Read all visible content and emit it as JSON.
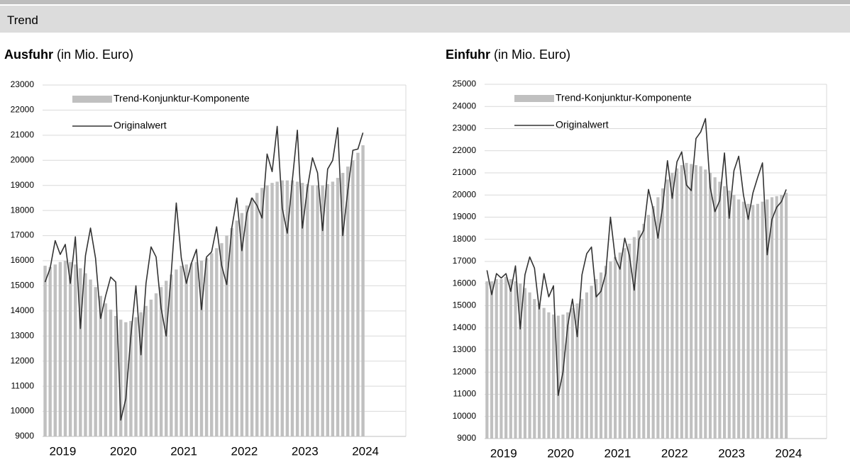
{
  "header": {
    "title": "Trend"
  },
  "chart_data": [
    {
      "type": "combo",
      "title": "Ausfuhr",
      "title_unit": "(in Mio. Euro)",
      "categories": [
        "2019",
        null,
        null,
        null,
        null,
        null,
        null,
        null,
        null,
        null,
        null,
        null,
        "2020",
        null,
        null,
        null,
        null,
        null,
        null,
        null,
        null,
        null,
        null,
        null,
        "2021",
        null,
        null,
        null,
        null,
        null,
        null,
        null,
        null,
        null,
        null,
        null,
        "2022",
        null,
        null,
        null,
        null,
        null,
        null,
        null,
        null,
        null,
        null,
        null,
        "2023",
        null,
        null,
        null,
        null,
        null,
        null,
        null,
        null,
        null,
        null,
        null,
        "2024",
        null,
        null,
        null,
        null,
        null,
        null,
        null,
        null,
        null,
        null,
        null
      ],
      "ylim": [
        9000,
        23000
      ],
      "yticks": [
        9000,
        10000,
        11000,
        12000,
        13000,
        14000,
        15000,
        16000,
        17000,
        18000,
        19000,
        20000,
        21000,
        22000,
        23000
      ],
      "grid": true,
      "legend": "top-left",
      "series": [
        {
          "name": "Trend-Konjunktur-Komponente",
          "type": "bar",
          "color": "#c0c0c0",
          "values": [
            15800,
            15750,
            15850,
            15950,
            16000,
            15950,
            15850,
            15700,
            15500,
            15250,
            14950,
            14600,
            14300,
            14050,
            13800,
            13650,
            13550,
            13600,
            13750,
            13950,
            14200,
            14450,
            14700,
            14950,
            15200,
            15450,
            15650,
            15800,
            15850,
            15900,
            15950,
            16000,
            16100,
            16300,
            16500,
            16700,
            17000,
            17300,
            17600,
            17900,
            18200,
            18500,
            18700,
            18900,
            19000,
            19100,
            19150,
            19200,
            19200,
            19200,
            19150,
            19100,
            19050,
            19000,
            19000,
            19000,
            19050,
            19150,
            19300,
            19500,
            19750,
            20000,
            20300,
            20600,
            null,
            null,
            null,
            null,
            null,
            null,
            null,
            null
          ]
        },
        {
          "name": "Originalwert",
          "type": "line",
          "color": "#333333",
          "values": [
            15150,
            15700,
            16800,
            16250,
            16650,
            15100,
            16950,
            13300,
            16200,
            17300,
            16100,
            13700,
            14600,
            15350,
            15150,
            9650,
            10500,
            13000,
            15000,
            12250,
            15100,
            16550,
            16150,
            14100,
            13000,
            15500,
            18300,
            16100,
            15100,
            15900,
            16450,
            14050,
            16150,
            16350,
            17350,
            15800,
            15050,
            17300,
            18500,
            16400,
            17900,
            18500,
            18200,
            17700,
            20250,
            19550,
            21350,
            18100,
            17100,
            19200,
            21200,
            17300,
            18900,
            20100,
            19500,
            17200,
            19650,
            20000,
            21300,
            17000,
            18800,
            20400,
            20450,
            21100,
            null,
            null,
            null,
            null,
            null,
            null,
            null,
            null
          ]
        }
      ]
    },
    {
      "type": "combo",
      "title": "Einfuhr",
      "title_unit": "(in Mio. Euro)",
      "categories": [
        "2019",
        null,
        null,
        null,
        null,
        null,
        null,
        null,
        null,
        null,
        null,
        null,
        "2020",
        null,
        null,
        null,
        null,
        null,
        null,
        null,
        null,
        null,
        null,
        null,
        "2021",
        null,
        null,
        null,
        null,
        null,
        null,
        null,
        null,
        null,
        null,
        null,
        "2022",
        null,
        null,
        null,
        null,
        null,
        null,
        null,
        null,
        null,
        null,
        null,
        "2023",
        null,
        null,
        null,
        null,
        null,
        null,
        null,
        null,
        null,
        null,
        null,
        "2024",
        null,
        null,
        null,
        null,
        null,
        null,
        null,
        null,
        null,
        null,
        null
      ],
      "ylim": [
        9000,
        25000
      ],
      "yticks": [
        9000,
        10000,
        11000,
        12000,
        13000,
        14000,
        15000,
        16000,
        17000,
        18000,
        19000,
        20000,
        21000,
        22000,
        23000,
        24000,
        25000
      ],
      "grid": true,
      "legend": "top-left",
      "series": [
        {
          "name": "Trend-Konjunktur-Komponente",
          "type": "bar",
          "color": "#c0c0c0",
          "values": [
            16100,
            16100,
            16200,
            16200,
            16300,
            16200,
            16100,
            16000,
            15800,
            15600,
            15300,
            15100,
            14900,
            14700,
            14600,
            14550,
            14600,
            14700,
            14900,
            15100,
            15300,
            15600,
            15900,
            16200,
            16500,
            16800,
            17000,
            17200,
            17400,
            17600,
            17800,
            18100,
            18400,
            18700,
            19100,
            19500,
            19900,
            20300,
            20700,
            21000,
            21200,
            21350,
            21450,
            21400,
            21350,
            21300,
            21150,
            21000,
            20800,
            20600,
            20400,
            20200,
            20000,
            19800,
            19700,
            19600,
            19550,
            19600,
            19700,
            19800,
            19900,
            19950,
            20000,
            20100,
            null,
            null,
            null,
            null,
            null,
            null,
            null,
            null
          ]
        },
        {
          "name": "Originalwert",
          "type": "line",
          "color": "#333333",
          "values": [
            16600,
            15500,
            16450,
            16250,
            16450,
            15650,
            16800,
            13950,
            16400,
            17200,
            16700,
            14850,
            16450,
            15400,
            15900,
            10950,
            12000,
            14100,
            15300,
            13600,
            16400,
            17350,
            17650,
            15400,
            15650,
            16450,
            19000,
            17150,
            16650,
            18050,
            17250,
            15700,
            18000,
            18400,
            20250,
            19350,
            18050,
            19500,
            21550,
            19850,
            21500,
            21950,
            20450,
            20200,
            22550,
            22850,
            23450,
            20350,
            19250,
            19750,
            21900,
            18950,
            21100,
            21750,
            20000,
            18900,
            20100,
            20800,
            21450,
            17300,
            18900,
            19450,
            19700,
            20250,
            null,
            null,
            null,
            null,
            null,
            null,
            null,
            null
          ]
        }
      ]
    }
  ]
}
